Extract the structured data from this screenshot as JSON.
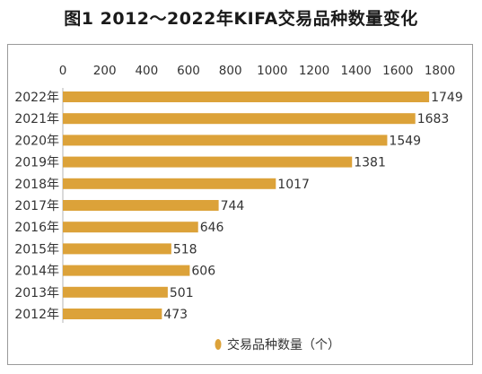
{
  "title": "图1  2012～2022年KIFA交易品种数量变化",
  "chart_data": {
    "type": "bar",
    "orientation": "horizontal",
    "title": "图1  2012～2022年KIFA交易品种数量变化",
    "xlim": [
      0,
      1800
    ],
    "x_ticks": [
      "0",
      "200",
      "400",
      "600",
      "800",
      "1000",
      "1200",
      "1400",
      "1600",
      "1800"
    ],
    "x_tick_values": [
      0,
      200,
      400,
      600,
      800,
      1000,
      1200,
      1400,
      1600,
      1800
    ],
    "axis_position": "top",
    "grid": false,
    "legend_position": "bottom-center",
    "categories": [
      "2022年",
      "2021年",
      "2020年",
      "2019年",
      "2018年",
      "2017年",
      "2016年",
      "2015年",
      "2014年",
      "2013年",
      "2012年"
    ],
    "series": [
      {
        "name": "交易品种数量（个）",
        "color": "#DCA239",
        "values": [
          1749,
          1683,
          1549,
          1381,
          1017,
          744,
          646,
          518,
          606,
          501,
          473
        ]
      }
    ]
  }
}
